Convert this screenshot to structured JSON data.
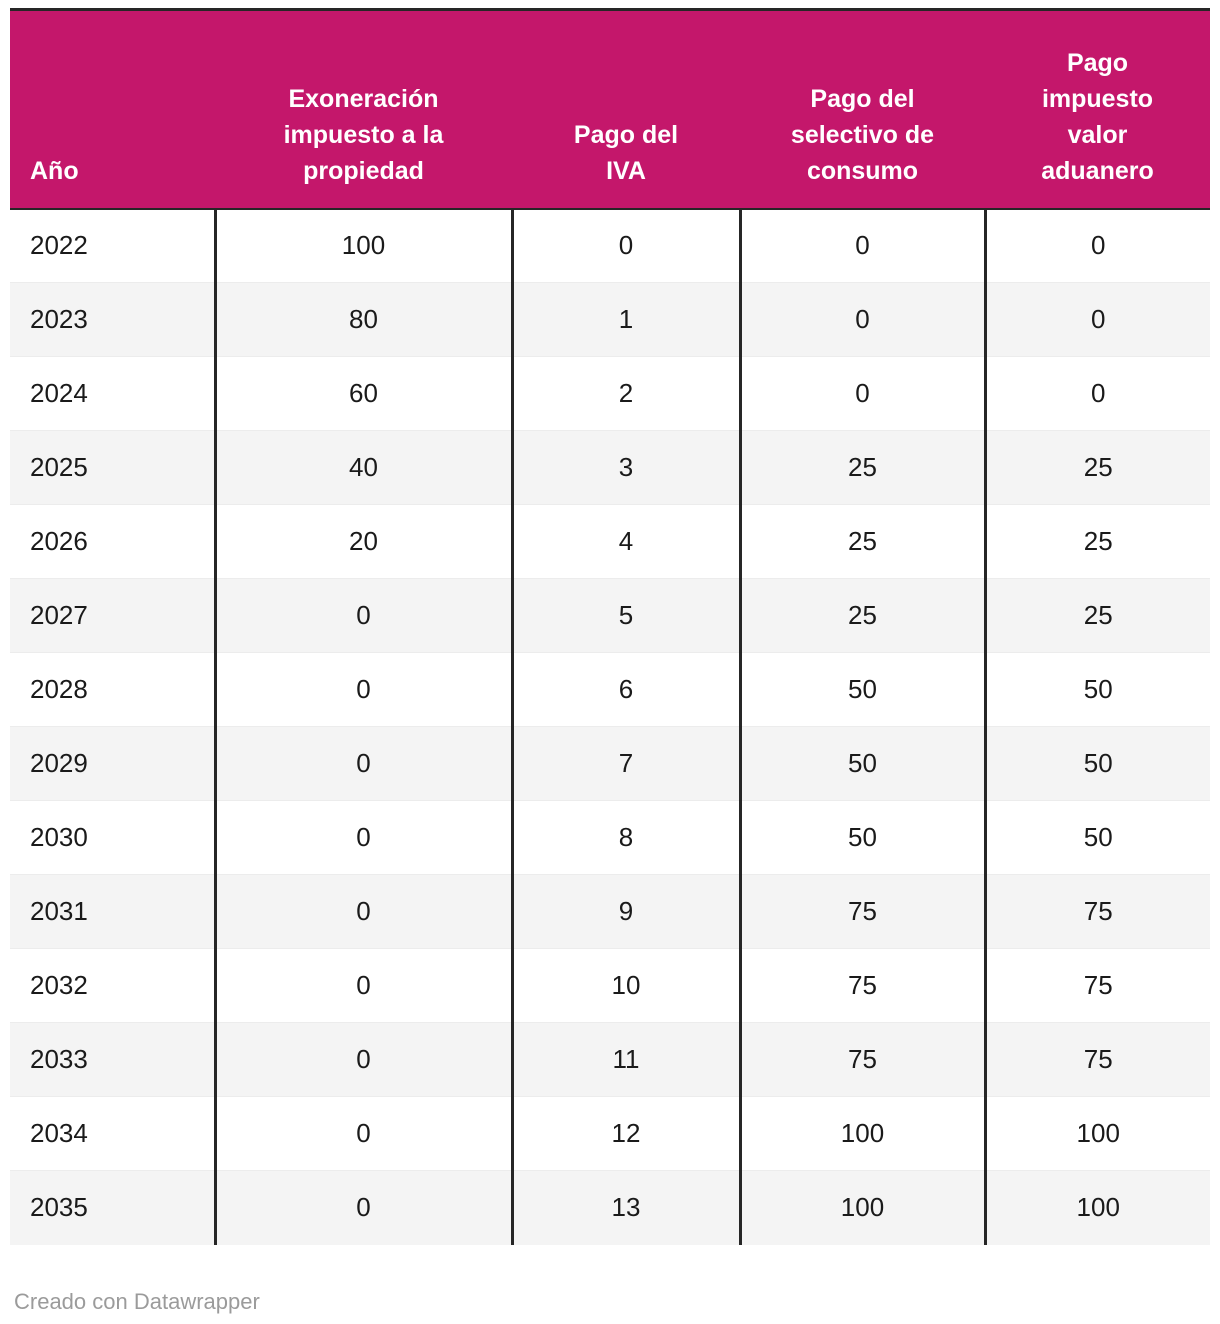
{
  "chart_data": {
    "type": "table",
    "columns": [
      "Año",
      "Exoneración impuesto a la propiedad",
      "Pago del IVA",
      "Pago del selectivo de consumo",
      "Pago impuesto valor aduanero"
    ],
    "rows": [
      [
        2022,
        100,
        0,
        0,
        0
      ],
      [
        2023,
        80,
        1,
        0,
        0
      ],
      [
        2024,
        60,
        2,
        0,
        0
      ],
      [
        2025,
        40,
        3,
        25,
        25
      ],
      [
        2026,
        20,
        4,
        25,
        25
      ],
      [
        2027,
        0,
        5,
        25,
        25
      ],
      [
        2028,
        0,
        6,
        50,
        50
      ],
      [
        2029,
        0,
        7,
        50,
        50
      ],
      [
        2030,
        0,
        8,
        50,
        50
      ],
      [
        2031,
        0,
        9,
        75,
        75
      ],
      [
        2032,
        0,
        10,
        75,
        75
      ],
      [
        2033,
        0,
        11,
        75,
        75
      ],
      [
        2034,
        0,
        12,
        100,
        100
      ],
      [
        2035,
        0,
        13,
        100,
        100
      ]
    ],
    "layout": {
      "row_striping": true,
      "column_separators": true,
      "header_position": "top"
    }
  },
  "footer": {
    "credit": "Creado con Datawrapper"
  },
  "colors": {
    "header_bg": "#c4176b",
    "header_text": "#ffffff",
    "column_separator": "#262626",
    "row_alt_bg": "#f4f4f4",
    "body_text": "#1a1a1a",
    "footer_text": "#9b9b9b"
  }
}
